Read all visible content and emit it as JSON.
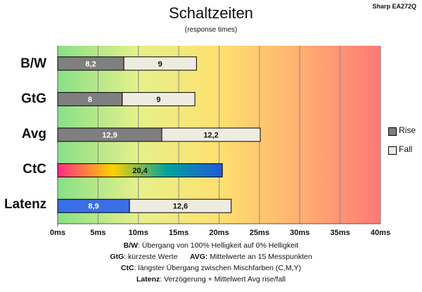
{
  "header": {
    "title": "Schaltzeiten",
    "subtitle": "(response times)",
    "model": "Sharp EA272Q"
  },
  "legend": [
    {
      "name": "Rise",
      "color": "#7f7f7f"
    },
    {
      "name": "Fall",
      "color": "#eeece1"
    }
  ],
  "footnotes": {
    "bw_key": "B/W",
    "bw_text": ":  Übergang von 100% Helligkeit auf 0% Helligkeit",
    "gtg_key": "GtG",
    "gtg_text": ": kürzeste  Werte",
    "avg_key": "AVG:",
    "avg_text": " Mittelwerte  an 15 Messpunkten",
    "ctc_key": "CtC",
    "ctc_text": ": längster Übergang  zwischen Mischfarben (C,M,Y)",
    "lat_key": "Latenz",
    "lat_text": ": Verzögerung  + Mittelwert Avg rise/fall"
  },
  "chart_data": {
    "type": "bar",
    "orientation": "horizontal",
    "stacked": true,
    "categories": [
      "B/W",
      "GtG",
      "Avg",
      "CtC",
      "Latenz"
    ],
    "series": [
      {
        "name": "Rise",
        "values": [
          8.2,
          8,
          12.9,
          20.4,
          8.9
        ],
        "labels": [
          "8,2",
          "8",
          "12,9",
          "20,4",
          "8,9"
        ]
      },
      {
        "name": "Fall",
        "values": [
          9,
          9,
          12.2,
          0,
          12.6
        ],
        "labels": [
          "9",
          "9",
          "12,2",
          "",
          "12,6"
        ]
      }
    ],
    "xlim": [
      0,
      40
    ],
    "xticks": [
      "0ms",
      "5ms",
      "10ms",
      "15ms",
      "20ms",
      "25ms",
      "30ms",
      "35ms",
      "40ms"
    ],
    "xtick_values": [
      0,
      5,
      10,
      15,
      20,
      25,
      30,
      35,
      40
    ],
    "grid": true,
    "legend_position": "right",
    "background": "gradient green-yellow-red",
    "colors": {
      "rise": "#7f7f7f",
      "fall": "#eeece1",
      "latency": "#3a6fe8",
      "ctc_gradient": [
        "#ff2a8a",
        "#ffd200",
        "#00a39b",
        "#2358d8"
      ],
      "bg_gradient": [
        "#88e088",
        "#e6f08a",
        "#ffe070",
        "#ffb070",
        "#ff7878"
      ]
    }
  }
}
